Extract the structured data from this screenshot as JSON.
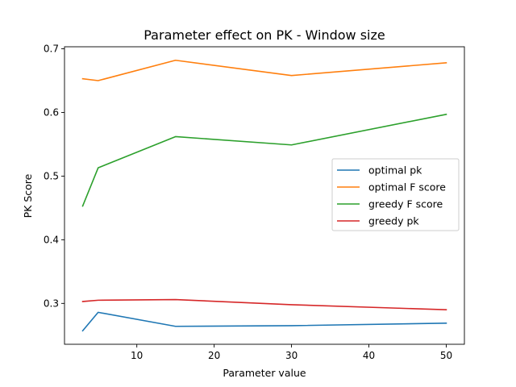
{
  "chart_data": {
    "type": "line",
    "title": "Parameter effect on PK - Window size",
    "xlabel": "Parameter value",
    "ylabel": "PK Score",
    "x": [
      3,
      5,
      15,
      30,
      50
    ],
    "series": [
      {
        "name": "optimal pk",
        "color": "#1f77b4",
        "values": [
          0.257,
          0.286,
          0.264,
          0.265,
          0.269
        ]
      },
      {
        "name": "optimal F score",
        "color": "#ff7f0e",
        "values": [
          0.653,
          0.65,
          0.682,
          0.658,
          0.678
        ]
      },
      {
        "name": "greedy F score",
        "color": "#2ca02c",
        "values": [
          0.453,
          0.513,
          0.562,
          0.549,
          0.597
        ]
      },
      {
        "name": "greedy pk",
        "color": "#d62728",
        "values": [
          0.303,
          0.305,
          0.306,
          0.298,
          0.29
        ]
      }
    ],
    "xticks": [
      10,
      20,
      30,
      40,
      50
    ],
    "xtick_labels": [
      "10",
      "20",
      "30",
      "40",
      "50"
    ],
    "yticks": [
      0.3,
      0.4,
      0.5,
      0.6,
      0.7
    ],
    "ytick_labels": [
      "0.3",
      "0.4",
      "0.5",
      "0.6",
      "0.7"
    ],
    "xlim": [
      0.65,
      52.35
    ],
    "ylim": [
      0.2358,
      0.7032
    ],
    "grid": false,
    "legend_position": "center-right"
  }
}
